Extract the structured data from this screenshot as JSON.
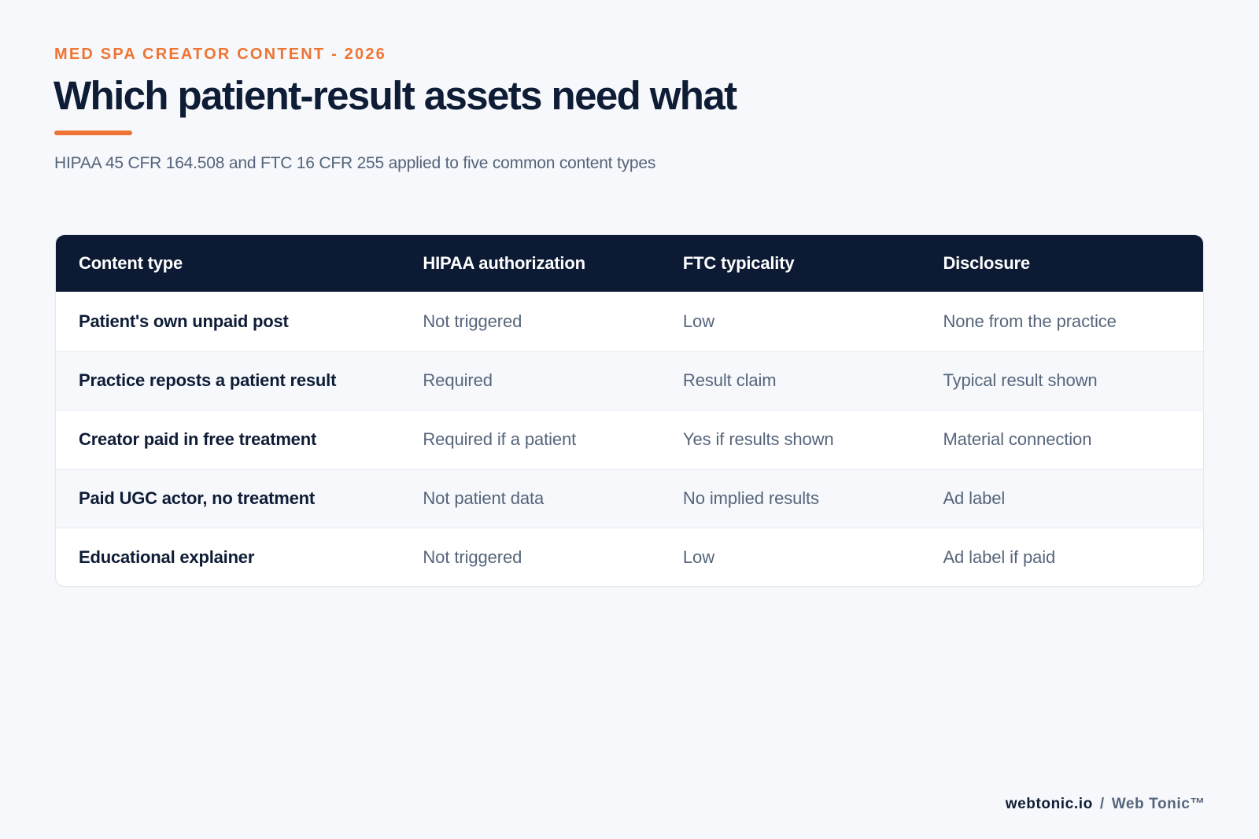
{
  "header": {
    "eyebrow": "MED SPA CREATOR CONTENT - 2026",
    "title": "Which patient-result assets need what",
    "subtitle": "HIPAA 45 CFR 164.508 and FTC 16 CFR 255 applied to five common content types"
  },
  "table": {
    "columns": [
      "Content type",
      "HIPAA authorization",
      "FTC typicality",
      "Disclosure"
    ],
    "rows": [
      [
        "Patient's own unpaid post",
        "Not triggered",
        "Low",
        "None from the practice"
      ],
      [
        "Practice reposts a patient result",
        "Required",
        "Result claim",
        "Typical result shown"
      ],
      [
        "Creator paid in free treatment",
        "Required if a patient",
        "Yes if results shown",
        "Material connection"
      ],
      [
        "Paid UGC actor, no treatment",
        "Not patient data",
        "No implied results",
        "Ad label"
      ],
      [
        "Educational explainer",
        "Not triggered",
        "Low",
        "Ad label if paid"
      ]
    ]
  },
  "footer": {
    "site": "webtonic.io",
    "separator": "/",
    "brand": "Web Tonic™"
  },
  "colors": {
    "accent": "#ee7433",
    "header_bg": "#0c1a34",
    "text_dark": "#0e1c36",
    "text_muted": "#56657b",
    "page_bg": "#f6f8fb"
  }
}
